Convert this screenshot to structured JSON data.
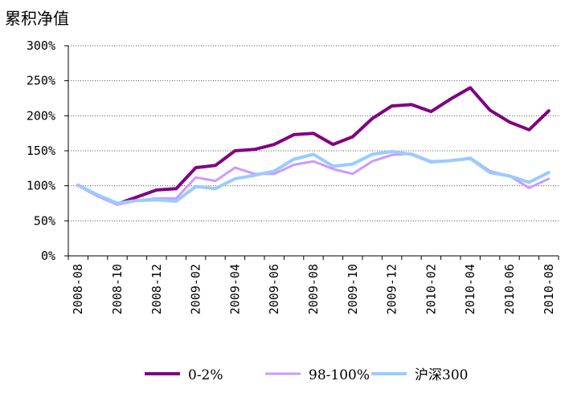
{
  "chart_data": {
    "type": "line",
    "title": "",
    "ylabel": "累积净值",
    "xlabel": "",
    "ylim": [
      0,
      300
    ],
    "yticks": [
      0,
      50,
      100,
      150,
      200,
      250,
      300
    ],
    "ytick_labels": [
      "0%",
      "50%",
      "100%",
      "150%",
      "200%",
      "250%",
      "300%"
    ],
    "xtick_labels": [
      "2008-08",
      "2008-10",
      "2008-12",
      "2009-02",
      "2009-04",
      "2009-06",
      "2009-08",
      "2009-10",
      "2009-12",
      "2010-02",
      "2010-04",
      "2010-06",
      "2010-08"
    ],
    "grid": "horizontal dotted",
    "legend_position": "bottom",
    "x": [
      "2008-08",
      "2008-09",
      "2008-10",
      "2008-11",
      "2008-12",
      "2009-01",
      "2009-02",
      "2009-03",
      "2009-04",
      "2009-05",
      "2009-06",
      "2009-07",
      "2009-08",
      "2009-09",
      "2009-10",
      "2009-11",
      "2009-12",
      "2010-01",
      "2010-02",
      "2010-03",
      "2010-04",
      "2010-05",
      "2010-06",
      "2010-07",
      "2010-08"
    ],
    "series": [
      {
        "name": "0-2%",
        "color": "#800080",
        "width": 4,
        "values": [
          101,
          86,
          74,
          84,
          94,
          96,
          126,
          129,
          150,
          152,
          159,
          173,
          175,
          159,
          170,
          196,
          214,
          216,
          206,
          224,
          240,
          208,
          191,
          180,
          207
        ]
      },
      {
        "name": "98-100%",
        "color": "#cc99ff",
        "width": 3,
        "values": [
          100,
          85,
          73,
          79,
          82,
          82,
          112,
          107,
          126,
          117,
          117,
          130,
          135,
          124,
          117,
          135,
          144,
          146,
          135,
          136,
          140,
          121,
          114,
          97,
          110
        ]
      },
      {
        "name": "沪深300",
        "color": "#99ccff",
        "width": 4,
        "values": [
          101,
          87,
          75,
          79,
          80,
          78,
          99,
          96,
          110,
          115,
          121,
          138,
          145,
          128,
          131,
          145,
          149,
          145,
          134,
          136,
          139,
          119,
          114,
          105,
          119
        ]
      }
    ]
  }
}
